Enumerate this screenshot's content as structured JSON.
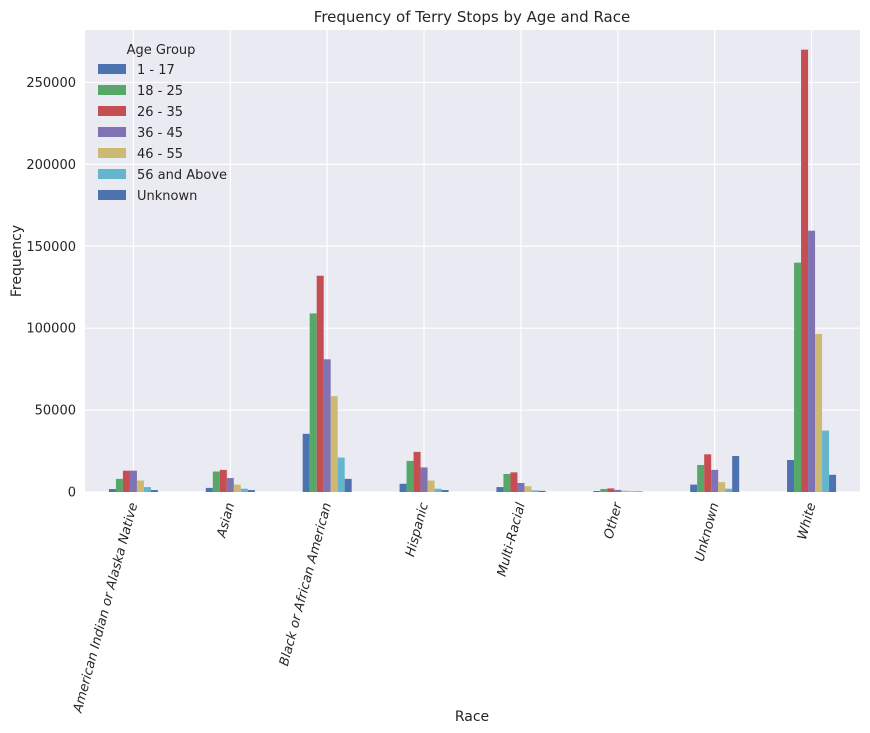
{
  "chart_data": {
    "type": "bar",
    "title": "Frequency of Terry Stops by Age and Race",
    "xlabel": "Race",
    "ylabel": "Frequency",
    "ylim": [
      0,
      282000
    ],
    "yticks": [
      0,
      50000,
      100000,
      150000,
      200000,
      250000
    ],
    "grid": true,
    "legend_title": "Age Group",
    "legend_position": "top-left",
    "categories": [
      "American Indian or Alaska Native",
      "Asian",
      "Black or African American",
      "Hispanic",
      "Multi-Racial",
      "Other",
      "Unknown",
      "White"
    ],
    "series": [
      {
        "name": "1 - 17",
        "color": "#4C72B0",
        "values": [
          1800,
          2500,
          35500,
          5000,
          3000,
          600,
          4500,
          19500
        ]
      },
      {
        "name": "18 - 25",
        "color": "#55A868",
        "values": [
          8000,
          12500,
          109000,
          19000,
          11000,
          1800,
          16500,
          140000
        ]
      },
      {
        "name": "26 - 35",
        "color": "#C44E52",
        "values": [
          13000,
          13500,
          132000,
          24500,
          12000,
          2200,
          23000,
          270000
        ]
      },
      {
        "name": "36 - 45",
        "color": "#8172B2",
        "values": [
          13000,
          8500,
          81000,
          15000,
          5500,
          1300,
          13500,
          159500
        ]
      },
      {
        "name": "46 - 55",
        "color": "#CCB974",
        "values": [
          7000,
          4500,
          58500,
          7000,
          3500,
          800,
          6000,
          96500
        ]
      },
      {
        "name": "56 and Above",
        "color": "#64B5CD",
        "values": [
          3000,
          2000,
          21000,
          2000,
          1000,
          400,
          2000,
          37500
        ]
      },
      {
        "name": "Unknown",
        "color": "#4C72B0",
        "values": [
          1200,
          1200,
          8000,
          1200,
          700,
          300,
          22000,
          10500
        ]
      }
    ]
  }
}
